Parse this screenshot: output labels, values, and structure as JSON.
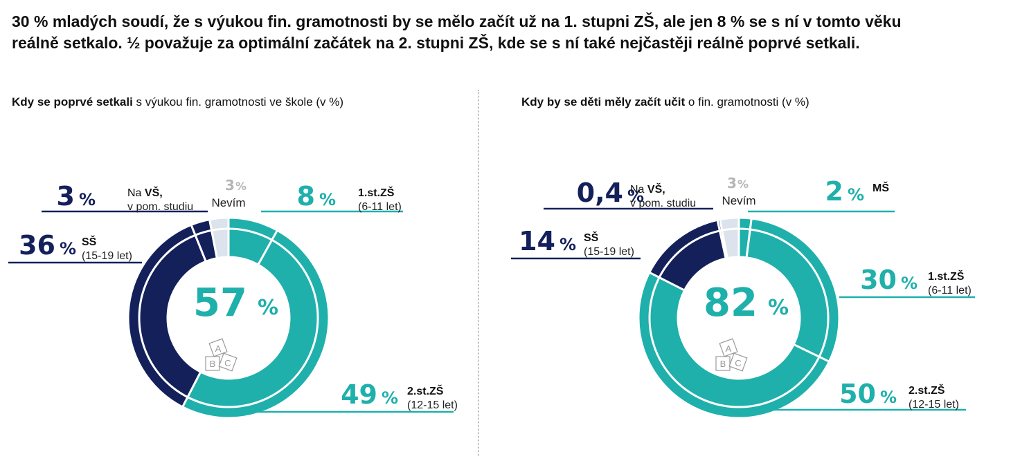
{
  "headline": {
    "line1": "30 % mladých soudí, že s výukou fin. gramotnosti by se mělo začít už na 1. stupni ZŠ, ale jen 8 % se s ní v tomto věku",
    "line2": "reálně setkalo. ½ považuje za optimální začátek na 2. stupni ZŠ, kde se s ní také nejčastěji reálně poprvé setkali."
  },
  "colors": {
    "teal": "#1fb0ab",
    "navy": "#14205a",
    "nevim": "#dde3ec",
    "gray_text": "#b5b5b5",
    "icon": "#9a9a9a"
  },
  "chart_data": [
    {
      "type": "pie",
      "variant": "donut",
      "title_bold": "Kdy se poprvé setkali",
      "title_rest": " s výukou fin. gramotnosti ve škole (v %)",
      "center_value": "57",
      "center_unit": "%",
      "unit": "%",
      "slices": [
        {
          "value": 8,
          "value_label": "8",
          "label": "1.st.ZŠ",
          "sublabel": "(6-11 let)",
          "group": "teal"
        },
        {
          "value": 49,
          "value_label": "49",
          "label": "2.st.ZŠ",
          "sublabel": "(12-15 let)",
          "group": "teal"
        },
        {
          "value": 36,
          "value_label": "36",
          "label": "SŠ",
          "sublabel": "(15-19 let)",
          "group": "navy"
        },
        {
          "value": 3,
          "value_label": "3",
          "label_pre": "Na ",
          "label": "VŠ,",
          "sublabel": "v pom. studiu",
          "group": "navy"
        },
        {
          "value": 3,
          "value_label": "3",
          "label": "Nevím",
          "sublabel": "",
          "group": "nevim"
        }
      ]
    },
    {
      "type": "pie",
      "variant": "donut",
      "title_bold": "Kdy by se děti měly začít učit",
      "title_rest": " o fin. gramotnosti (v %)",
      "center_value": "82",
      "center_unit": "%",
      "unit": "%",
      "slices": [
        {
          "value": 2,
          "value_label": "2",
          "label": "MŠ",
          "sublabel": "",
          "group": "teal"
        },
        {
          "value": 30,
          "value_label": "30",
          "label": "1.st.ZŠ",
          "sublabel": "(6-11 let)",
          "group": "teal"
        },
        {
          "value": 50,
          "value_label": "50",
          "label": "2.st.ZŠ",
          "sublabel": "(12-15 let)",
          "group": "teal"
        },
        {
          "value": 14,
          "value_label": "14",
          "label": "SŠ",
          "sublabel": "(15-19 let)",
          "group": "navy"
        },
        {
          "value": 0.4,
          "value_label": "0,4",
          "label_pre": "Na ",
          "label": "VŠ,",
          "sublabel": "v pom. studiu",
          "group": "navy"
        },
        {
          "value": 3,
          "value_label": "3",
          "label": "Nevím",
          "sublabel": "",
          "group": "nevim"
        }
      ]
    }
  ],
  "icon": {
    "name": "abc-blocks-icon",
    "letters": [
      "A",
      "B",
      "C"
    ]
  }
}
